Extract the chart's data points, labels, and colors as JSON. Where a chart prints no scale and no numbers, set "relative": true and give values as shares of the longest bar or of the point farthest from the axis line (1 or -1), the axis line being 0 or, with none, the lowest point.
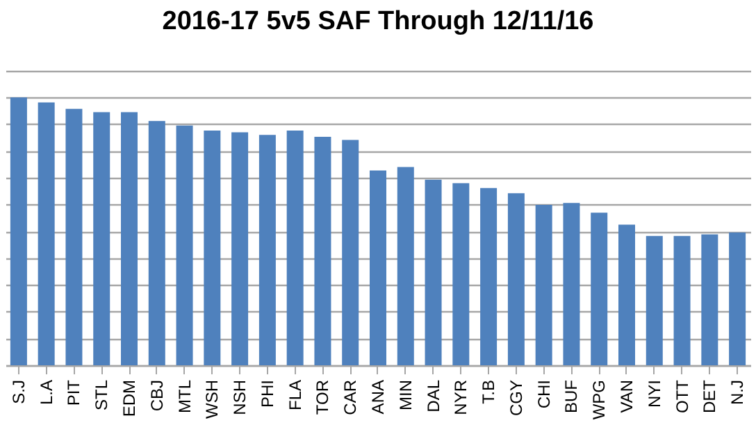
{
  "chart_data": {
    "type": "bar",
    "title": "2016-17 5v5 SAF Through 12/11/16",
    "categories": [
      "S.J",
      "L.A",
      "PIT",
      "STL",
      "EDM",
      "CBJ",
      "MTL",
      "WSH",
      "NSH",
      "PHI",
      "FLA",
      "TOR",
      "CAR",
      "ANA",
      "MIN",
      "DAL",
      "NYR",
      "T.B",
      "CGY",
      "CHI",
      "BUF",
      "WPG",
      "VAN",
      "NYI",
      "OTT",
      "DET",
      "N.J"
    ],
    "values": [
      1,
      0.981,
      0.957,
      0.945,
      0.945,
      0.912,
      0.895,
      0.876,
      0.87,
      0.86,
      0.876,
      0.853,
      0.841,
      0.727,
      0.74,
      0.693,
      0.68,
      0.662,
      0.642,
      0.599,
      0.606,
      0.57,
      0.525,
      0.483,
      0.483,
      0.489,
      0.496
    ],
    "color": "#4f81bd",
    "relative": true,
    "grid": "y"
  }
}
